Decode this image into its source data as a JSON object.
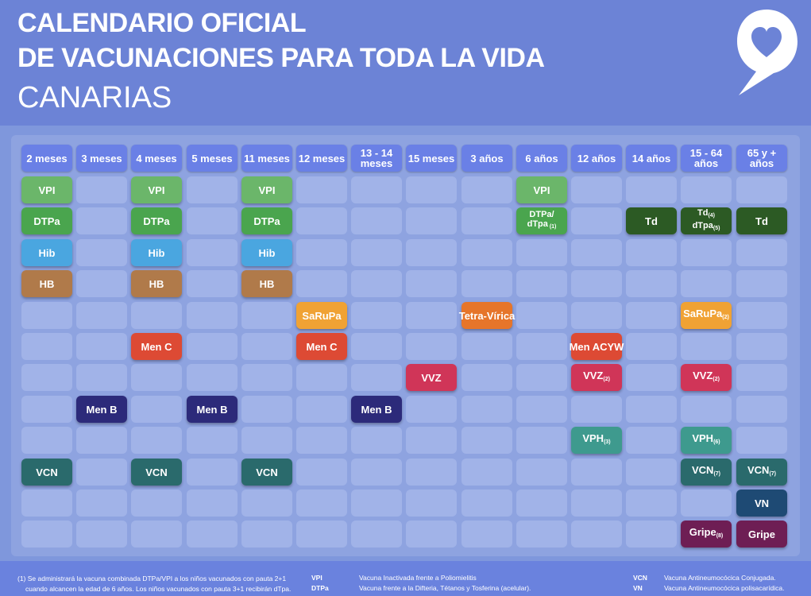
{
  "header": {
    "title_line1": "CALENDARIO OFICIAL",
    "title_line2": "DE VACUNACIONES PARA TODA LA VIDA",
    "subtitle": "CANARIAS"
  },
  "colors": {
    "VPI": "#6bb66a",
    "DTPa": "#4aa54e",
    "Hib": "#4aa6e0",
    "HB": "#b07a4a",
    "SaRuPa": "#f0a234",
    "Tetra-Vírica": "#e6752a",
    "Men C": "#dd4a34",
    "Men ACYW": "#dd4a34",
    "VVZ": "#d03558",
    "Men B": "#2c2a7a",
    "VPH": "#3e9a8e",
    "VCN": "#2a6a6c",
    "VN": "#1e4a74",
    "Gripe": "#6e1e54",
    "Td": "#2c5a24"
  },
  "ages": [
    "2 meses",
    "3 meses",
    "4 meses",
    "5 meses",
    "11 meses",
    "12 meses",
    "13 - 14 meses",
    "15 meses",
    "3 años",
    "6 años",
    "12 años",
    "14 años",
    "15 - 64 años",
    "65  y + años"
  ],
  "vaccines": [
    {
      "label": "VPI",
      "col": 0,
      "row": 0,
      "key": "VPI"
    },
    {
      "label": "VPI",
      "col": 2,
      "row": 0,
      "key": "VPI"
    },
    {
      "label": "VPI",
      "col": 4,
      "row": 0,
      "key": "VPI"
    },
    {
      "label": "VPI",
      "col": 9,
      "row": 0,
      "key": "VPI"
    },
    {
      "label": "DTPa",
      "col": 0,
      "row": 1,
      "key": "DTPa"
    },
    {
      "label": "DTPa",
      "col": 2,
      "row": 1,
      "key": "DTPa"
    },
    {
      "label": "DTPa",
      "col": 4,
      "row": 1,
      "key": "DTPa"
    },
    {
      "label": "DTPa/ dTpa",
      "sup": "(1)",
      "col": 9,
      "row": 1,
      "key": "DTPa",
      "small": true
    },
    {
      "label": "Td",
      "col": 11,
      "row": 1,
      "key": "Td"
    },
    {
      "label": "Td",
      "sup": "(4)",
      "label2": "dTpa",
      "sup2": "(5)",
      "col": 12,
      "row": 1,
      "key": "Td",
      "small": true
    },
    {
      "label": "Td",
      "col": 13,
      "row": 1,
      "key": "Td"
    },
    {
      "label": "Hib",
      "col": 0,
      "row": 2,
      "key": "Hib"
    },
    {
      "label": "Hib",
      "col": 2,
      "row": 2,
      "key": "Hib"
    },
    {
      "label": "Hib",
      "col": 4,
      "row": 2,
      "key": "Hib"
    },
    {
      "label": "HB",
      "col": 0,
      "row": 3,
      "key": "HB"
    },
    {
      "label": "HB",
      "col": 2,
      "row": 3,
      "key": "HB"
    },
    {
      "label": "HB",
      "col": 4,
      "row": 3,
      "key": "HB"
    },
    {
      "label": "SaRuPa",
      "col": 5,
      "row": 4,
      "key": "SaRuPa"
    },
    {
      "label": "Tetra-Vírica",
      "col": 8,
      "row": 4,
      "key": "Tetra-Vírica"
    },
    {
      "label": "SaRuPa",
      "sup": "(2)",
      "col": 12,
      "row": 4,
      "key": "SaRuPa"
    },
    {
      "label": "Men C",
      "col": 2,
      "row": 5,
      "key": "Men C"
    },
    {
      "label": "Men C",
      "col": 5,
      "row": 5,
      "key": "Men C"
    },
    {
      "label": "Men ACYW",
      "col": 10,
      "row": 5,
      "key": "Men ACYW"
    },
    {
      "label": "VVZ",
      "col": 7,
      "row": 6,
      "key": "VVZ"
    },
    {
      "label": "VVZ",
      "sup": "(2)",
      "col": 10,
      "row": 6,
      "key": "VVZ"
    },
    {
      "label": "VVZ",
      "sup": "(2)",
      "col": 12,
      "row": 6,
      "key": "VVZ"
    },
    {
      "label": "Men B",
      "col": 1,
      "row": 7,
      "key": "Men B"
    },
    {
      "label": "Men B",
      "col": 3,
      "row": 7,
      "key": "Men B"
    },
    {
      "label": "Men B",
      "col": 6,
      "row": 7,
      "key": "Men B"
    },
    {
      "label": "VPH",
      "sup": "(3)",
      "col": 10,
      "row": 8,
      "key": "VPH"
    },
    {
      "label": "VPH",
      "sup": "(6)",
      "col": 12,
      "row": 8,
      "key": "VPH"
    },
    {
      "label": "VCN",
      "col": 0,
      "row": 9,
      "key": "VCN"
    },
    {
      "label": "VCN",
      "col": 2,
      "row": 9,
      "key": "VCN"
    },
    {
      "label": "VCN",
      "col": 4,
      "row": 9,
      "key": "VCN"
    },
    {
      "label": "VCN",
      "sup": "(7)",
      "col": 12,
      "row": 9,
      "key": "VCN"
    },
    {
      "label": "VCN",
      "sup": "(7)",
      "col": 13,
      "row": 9,
      "key": "VCN"
    },
    {
      "label": "VN",
      "col": 13,
      "row": 10,
      "key": "VN"
    },
    {
      "label": "Gripe",
      "sup": "(8)",
      "col": 12,
      "row": 11,
      "key": "Gripe"
    },
    {
      "label": "Gripe",
      "col": 13,
      "row": 11,
      "key": "Gripe"
    }
  ],
  "footer": {
    "note_line1": "(1) Se administrará la vacuna combinada DTPa/VPI a los niños vacunados con pauta 2+1",
    "note_line2": "cuando alcancen la edad de 6 años. Los niños vacunados con pauta 3+1 recibirán dTpa.",
    "abbr_vpi": "VPI",
    "desc_vpi": "Vacuna Inactivada frente a Poliomielitis",
    "abbr_dtpa": "DTPa",
    "desc_dtpa": "Vacuna frente a la Difteria, Tétanos y Tosferina (acelular).",
    "abbr_vcn": "VCN",
    "desc_vcn": "Vacuna Antineumocócica Conjugada.",
    "abbr_vn": "VN",
    "desc_vn": "Vacuna Antineumocócica polisacarídica."
  }
}
